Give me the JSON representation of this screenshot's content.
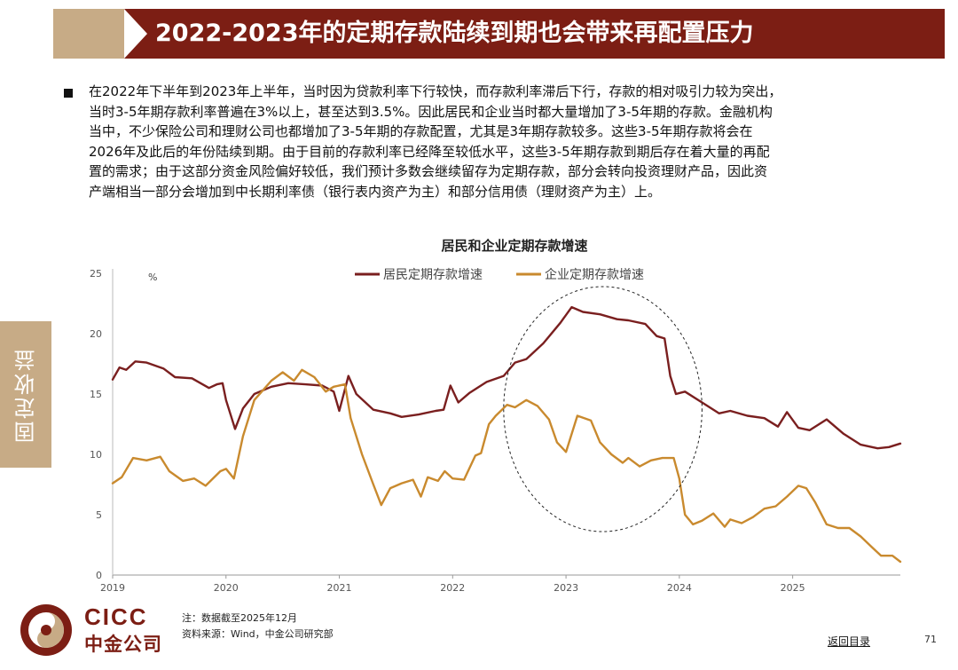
{
  "header": {
    "title": "2022-2023年的定期存款陆续到期也会带来再配置压力",
    "accent_color": "#c7ab86",
    "bar_color": "#7c1e14"
  },
  "body": {
    "lines": [
      "在2022年下半年到2023年上半年，当时因为贷款利率下行较快，而存款利率滞后下行，存款的相对吸引力较为突出，",
      "当时3-5年期存款利率普遍在3%以上，甚至达到3.5%。因此居民和企业当时都大量增加了3-5年期的存款。金融机构",
      "当中，不少保险公司和理财公司也都增加了3-5年期的存款配置，尤其是3年期存款较多。这些3-5年期存款将会在",
      "2026年及此后的年份陆续到期。由于目前的存款利率已经降至较低水平，这些3-5年期存款到期后存在着大量的再配",
      "置的需求；由于这部分资金风险偏好较低，我们预计多数会继续留存为定期存款，部分会转向投资理财产品，因此资",
      "产端相当一部分会增加到中长期利率债（银行表内资产为主）和部分信用债（理财资产为主）上。"
    ]
  },
  "side_tab": {
    "label": "固定收益"
  },
  "chart_data": {
    "type": "line",
    "title": "居民和企业定期存款增速",
    "unit_label": "%",
    "xlabel": "",
    "ylabel": "%",
    "ylim": [
      0,
      25
    ],
    "yticks": [
      0,
      5,
      10,
      15,
      20,
      25
    ],
    "xlim": [
      2019.0,
      2025.95
    ],
    "xticks": [
      {
        "label": "2019",
        "value": 2019
      },
      {
        "label": "2020",
        "value": 2020
      },
      {
        "label": "2021",
        "value": 2021
      },
      {
        "label": "2022",
        "value": 2022
      },
      {
        "label": "2023",
        "value": 2023
      },
      {
        "label": "2024",
        "value": 2024
      },
      {
        "label": "2025",
        "value": 2025
      }
    ],
    "grid": false,
    "legend_position": "top",
    "highlight": {
      "shape": "dashed-ellipse",
      "x_range": [
        2022.45,
        2024.2
      ],
      "y_range": [
        3.6,
        23.9
      ]
    },
    "series": [
      {
        "name": "居民定期存款增速",
        "color": "#7a1f1f",
        "points": [
          [
            2019.0,
            16.2
          ],
          [
            2019.06,
            17.2
          ],
          [
            2019.12,
            17.0
          ],
          [
            2019.2,
            17.7
          ],
          [
            2019.3,
            17.6
          ],
          [
            2019.45,
            17.1
          ],
          [
            2019.55,
            16.4
          ],
          [
            2019.7,
            16.3
          ],
          [
            2019.85,
            15.5
          ],
          [
            2019.92,
            15.8
          ],
          [
            2019.97,
            15.9
          ],
          [
            2020.0,
            14.5
          ],
          [
            2020.05,
            13.0
          ],
          [
            2020.08,
            12.1
          ],
          [
            2020.15,
            13.8
          ],
          [
            2020.25,
            15.0
          ],
          [
            2020.4,
            15.6
          ],
          [
            2020.55,
            15.9
          ],
          [
            2020.7,
            15.8
          ],
          [
            2020.85,
            15.7
          ],
          [
            2020.95,
            15.2
          ],
          [
            2021.0,
            13.6
          ],
          [
            2021.08,
            16.5
          ],
          [
            2021.15,
            15.0
          ],
          [
            2021.3,
            13.7
          ],
          [
            2021.45,
            13.4
          ],
          [
            2021.55,
            13.1
          ],
          [
            2021.7,
            13.3
          ],
          [
            2021.85,
            13.6
          ],
          [
            2021.92,
            13.7
          ],
          [
            2021.98,
            15.7
          ],
          [
            2022.05,
            14.3
          ],
          [
            2022.15,
            15.1
          ],
          [
            2022.3,
            16.0
          ],
          [
            2022.45,
            16.5
          ],
          [
            2022.55,
            17.6
          ],
          [
            2022.65,
            17.9
          ],
          [
            2022.8,
            19.2
          ],
          [
            2022.95,
            20.9
          ],
          [
            2023.05,
            22.2
          ],
          [
            2023.15,
            21.8
          ],
          [
            2023.3,
            21.6
          ],
          [
            2023.45,
            21.2
          ],
          [
            2023.55,
            21.1
          ],
          [
            2023.7,
            20.8
          ],
          [
            2023.8,
            19.8
          ],
          [
            2023.87,
            19.6
          ],
          [
            2023.92,
            16.5
          ],
          [
            2023.97,
            15.0
          ],
          [
            2024.05,
            15.2
          ],
          [
            2024.2,
            14.3
          ],
          [
            2024.35,
            13.4
          ],
          [
            2024.45,
            13.6
          ],
          [
            2024.6,
            13.2
          ],
          [
            2024.75,
            13.0
          ],
          [
            2024.87,
            12.3
          ],
          [
            2024.95,
            13.5
          ],
          [
            2025.05,
            12.2
          ],
          [
            2025.15,
            12.0
          ],
          [
            2025.3,
            12.9
          ],
          [
            2025.45,
            11.7
          ],
          [
            2025.6,
            10.8
          ],
          [
            2025.75,
            10.5
          ],
          [
            2025.85,
            10.6
          ],
          [
            2025.95,
            10.9
          ]
        ]
      },
      {
        "name": "企业定期存款增速",
        "color": "#c98a2e",
        "points": [
          [
            2019.0,
            7.6
          ],
          [
            2019.08,
            8.1
          ],
          [
            2019.18,
            9.7
          ],
          [
            2019.3,
            9.5
          ],
          [
            2019.42,
            9.8
          ],
          [
            2019.5,
            8.6
          ],
          [
            2019.62,
            7.8
          ],
          [
            2019.72,
            8.0
          ],
          [
            2019.82,
            7.4
          ],
          [
            2019.95,
            8.6
          ],
          [
            2020.0,
            8.8
          ],
          [
            2020.07,
            8.0
          ],
          [
            2020.15,
            11.5
          ],
          [
            2020.25,
            14.5
          ],
          [
            2020.4,
            16.1
          ],
          [
            2020.5,
            16.8
          ],
          [
            2020.6,
            16.1
          ],
          [
            2020.67,
            17.0
          ],
          [
            2020.78,
            16.4
          ],
          [
            2020.88,
            15.2
          ],
          [
            2020.95,
            15.6
          ],
          [
            2021.05,
            15.8
          ],
          [
            2021.1,
            13.0
          ],
          [
            2021.2,
            10.0
          ],
          [
            2021.3,
            7.5
          ],
          [
            2021.37,
            5.8
          ],
          [
            2021.45,
            7.2
          ],
          [
            2021.55,
            7.6
          ],
          [
            2021.65,
            7.9
          ],
          [
            2021.72,
            6.5
          ],
          [
            2021.78,
            8.1
          ],
          [
            2021.87,
            7.8
          ],
          [
            2021.93,
            8.6
          ],
          [
            2022.0,
            8.0
          ],
          [
            2022.1,
            7.9
          ],
          [
            2022.2,
            9.9
          ],
          [
            2022.25,
            10.1
          ],
          [
            2022.32,
            12.5
          ],
          [
            2022.38,
            13.2
          ],
          [
            2022.48,
            14.1
          ],
          [
            2022.55,
            13.9
          ],
          [
            2022.65,
            14.5
          ],
          [
            2022.75,
            14.0
          ],
          [
            2022.85,
            12.9
          ],
          [
            2022.92,
            11.0
          ],
          [
            2023.0,
            10.2
          ],
          [
            2023.1,
            13.2
          ],
          [
            2023.22,
            12.8
          ],
          [
            2023.3,
            11.0
          ],
          [
            2023.4,
            10.0
          ],
          [
            2023.5,
            9.3
          ],
          [
            2023.55,
            9.7
          ],
          [
            2023.65,
            9.0
          ],
          [
            2023.75,
            9.5
          ],
          [
            2023.85,
            9.7
          ],
          [
            2023.95,
            9.7
          ],
          [
            2024.0,
            8.0
          ],
          [
            2024.05,
            5.0
          ],
          [
            2024.12,
            4.2
          ],
          [
            2024.2,
            4.5
          ],
          [
            2024.3,
            5.1
          ],
          [
            2024.4,
            4.0
          ],
          [
            2024.45,
            4.6
          ],
          [
            2024.55,
            4.3
          ],
          [
            2024.65,
            4.8
          ],
          [
            2024.75,
            5.5
          ],
          [
            2024.85,
            5.7
          ],
          [
            2024.95,
            6.5
          ],
          [
            2025.05,
            7.4
          ],
          [
            2025.12,
            7.2
          ],
          [
            2025.2,
            6.0
          ],
          [
            2025.3,
            4.2
          ],
          [
            2025.4,
            3.9
          ],
          [
            2025.5,
            3.9
          ],
          [
            2025.6,
            3.2
          ],
          [
            2025.7,
            2.3
          ],
          [
            2025.78,
            1.6
          ],
          [
            2025.88,
            1.6
          ],
          [
            2025.95,
            1.1
          ]
        ]
      }
    ]
  },
  "footer": {
    "note": "注：数据截至2025年12月",
    "source": "资料来源：Wind，中金公司研究部",
    "logo_text": "CICC",
    "logo_cn": "中金公司",
    "back_link": "返回目录",
    "page_number": "71",
    "brand_color": "#7c1e14"
  }
}
